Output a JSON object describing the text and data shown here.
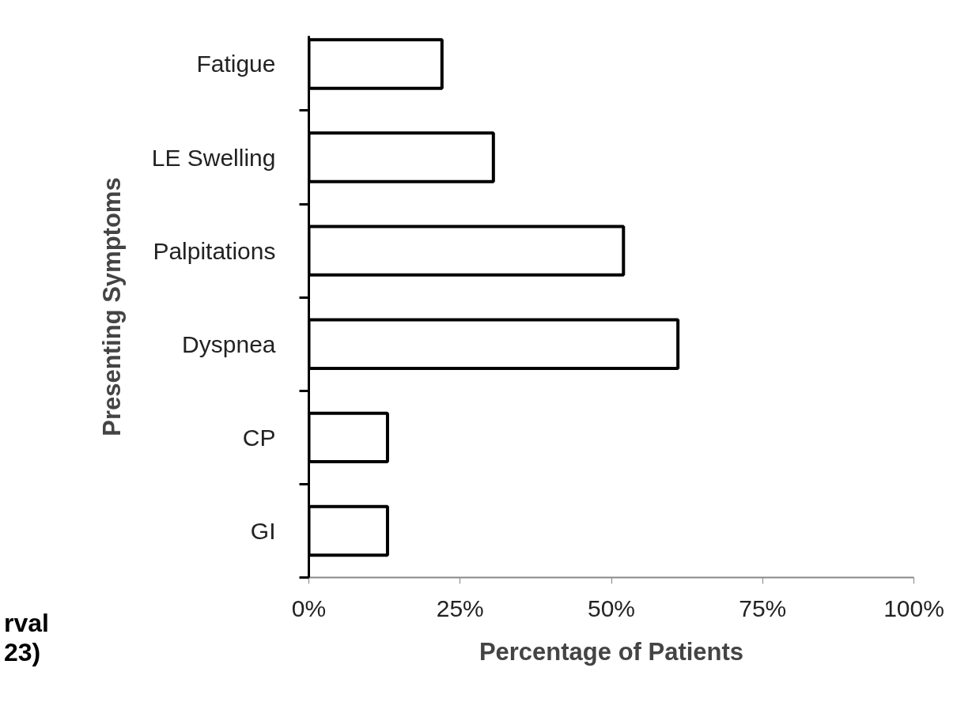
{
  "chart_data": {
    "type": "bar",
    "orientation": "horizontal",
    "ylabel": "Presenting Symptoms",
    "xlabel": "Percentage of Patients",
    "categories": [
      "Fatigue",
      "LE Swelling",
      "Palpitations",
      "Dyspnea",
      "CP",
      "GI"
    ],
    "values": [
      22,
      30.5,
      52,
      61,
      13,
      13
    ],
    "color": "#ffffff",
    "xlim": [
      0,
      100
    ],
    "xticks": [
      {
        "value": 0,
        "label": "0%"
      },
      {
        "value": 25,
        "label": "25%"
      },
      {
        "value": 50,
        "label": "50%"
      },
      {
        "value": 75,
        "label": "75%"
      },
      {
        "value": 100,
        "label": "100%"
      }
    ],
    "grid": false,
    "annotations": [
      "rval",
      "23)"
    ]
  }
}
